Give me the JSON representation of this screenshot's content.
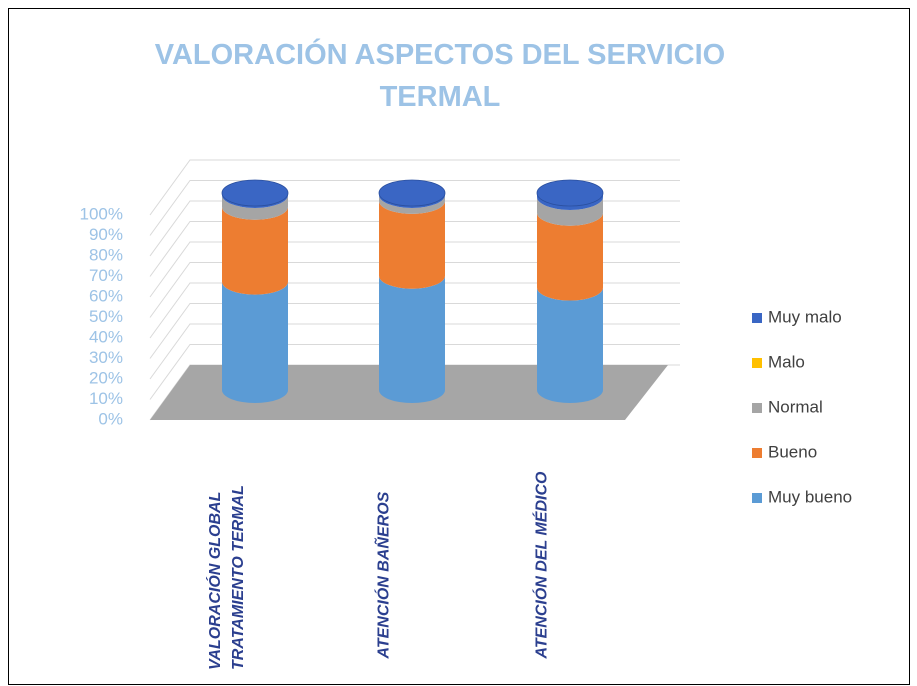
{
  "chart_data": {
    "type": "bar3d-cylinder-stacked",
    "title": "VALORACIÓN ASPECTOS DEL SERVICIO TERMAL",
    "categories": [
      "VALORACIÓN GLOBAL TRATAMIENTO TERMAL",
      "ATENCIÓN BAÑEROS",
      "ATENCIÓN DEL MÉDICO"
    ],
    "series": [
      {
        "name": "Muy bueno",
        "color": "#5b9bd5",
        "values": [
          55,
          58,
          52
        ]
      },
      {
        "name": "Bueno",
        "color": "#ed7d31",
        "values": [
          38,
          38,
          38
        ]
      },
      {
        "name": "Normal",
        "color": "#a5a5a5",
        "values": [
          6,
          3,
          8
        ]
      },
      {
        "name": "Malo",
        "color": "#ffc000",
        "values": [
          0,
          0,
          0
        ]
      },
      {
        "name": "Muy malo",
        "color": "#3a66c4",
        "values": [
          1,
          1,
          2
        ]
      }
    ],
    "ylim": [
      0,
      100
    ],
    "yticks": [
      {
        "value": 0,
        "label": "0%"
      },
      {
        "value": 10,
        "label": "10%"
      },
      {
        "value": 20,
        "label": "20%"
      },
      {
        "value": 30,
        "label": "30%"
      },
      {
        "value": 40,
        "label": "40%"
      },
      {
        "value": 50,
        "label": "50%"
      },
      {
        "value": 60,
        "label": "60%"
      },
      {
        "value": 70,
        "label": "70%"
      },
      {
        "value": 80,
        "label": "80%"
      },
      {
        "value": 90,
        "label": "90%"
      },
      {
        "value": 100,
        "label": "100%"
      }
    ],
    "grid": true,
    "legend": "right"
  }
}
